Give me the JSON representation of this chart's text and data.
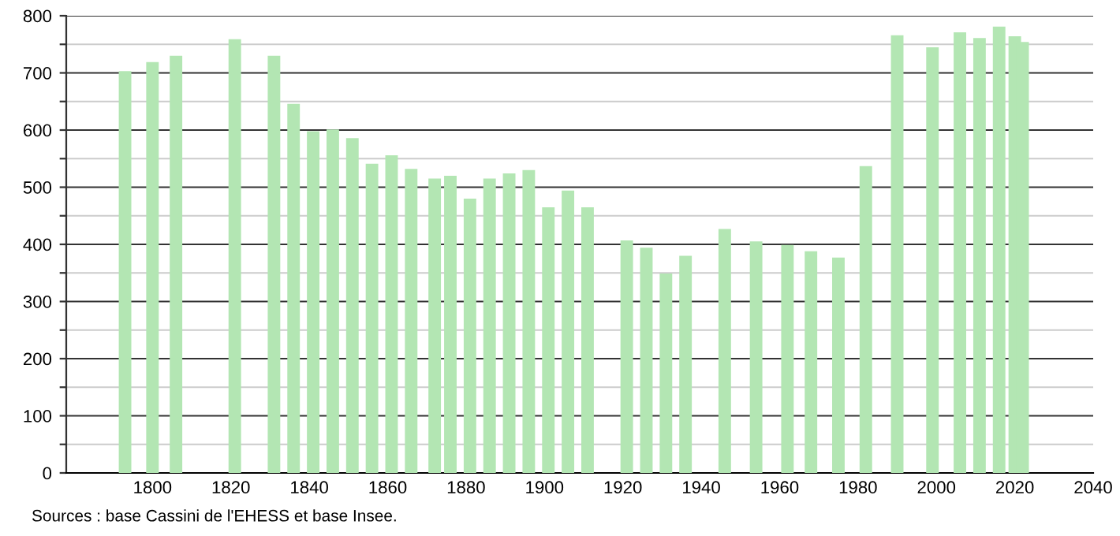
{
  "chart_data": {
    "type": "bar",
    "x": [
      1793,
      1800,
      1806,
      1821,
      1831,
      1836,
      1841,
      1846,
      1851,
      1856,
      1861,
      1866,
      1872,
      1876,
      1881,
      1886,
      1891,
      1896,
      1901,
      1906,
      1911,
      1921,
      1926,
      1931,
      1936,
      1946,
      1954,
      1962,
      1968,
      1975,
      1982,
      1990,
      1999,
      2006,
      2011,
      2016,
      2020,
      2022
    ],
    "values": [
      703,
      719,
      730,
      759,
      730,
      646,
      598,
      601,
      586,
      541,
      556,
      532,
      515,
      520,
      480,
      515,
      524,
      530,
      465,
      494,
      465,
      407,
      394,
      349,
      380,
      427,
      405,
      399,
      388,
      377,
      537,
      766,
      745,
      771,
      761,
      781,
      764,
      754
    ],
    "color": "#b3e6b3",
    "xlim": [
      1778,
      2040
    ],
    "xticks": [
      1800,
      1820,
      1840,
      1860,
      1880,
      1900,
      1920,
      1940,
      1960,
      1980,
      2000,
      2020,
      2040
    ],
    "ylim": [
      0,
      800
    ],
    "yticks": [
      0,
      {
        "value": 50,
        "label": null
      },
      100,
      {
        "value": 150,
        "label": null
      },
      200,
      {
        "value": 250,
        "label": null
      },
      300,
      {
        "value": 350,
        "label": null
      },
      400,
      {
        "value": 450,
        "label": null
      },
      500,
      {
        "value": 550,
        "label": null
      },
      600,
      {
        "value": 650,
        "label": null
      },
      700,
      {
        "value": 750,
        "label": null
      },
      800
    ],
    "grid": "y",
    "annotations": [
      "Sources : base Cassini de l'EHESS et base Insee."
    ]
  }
}
